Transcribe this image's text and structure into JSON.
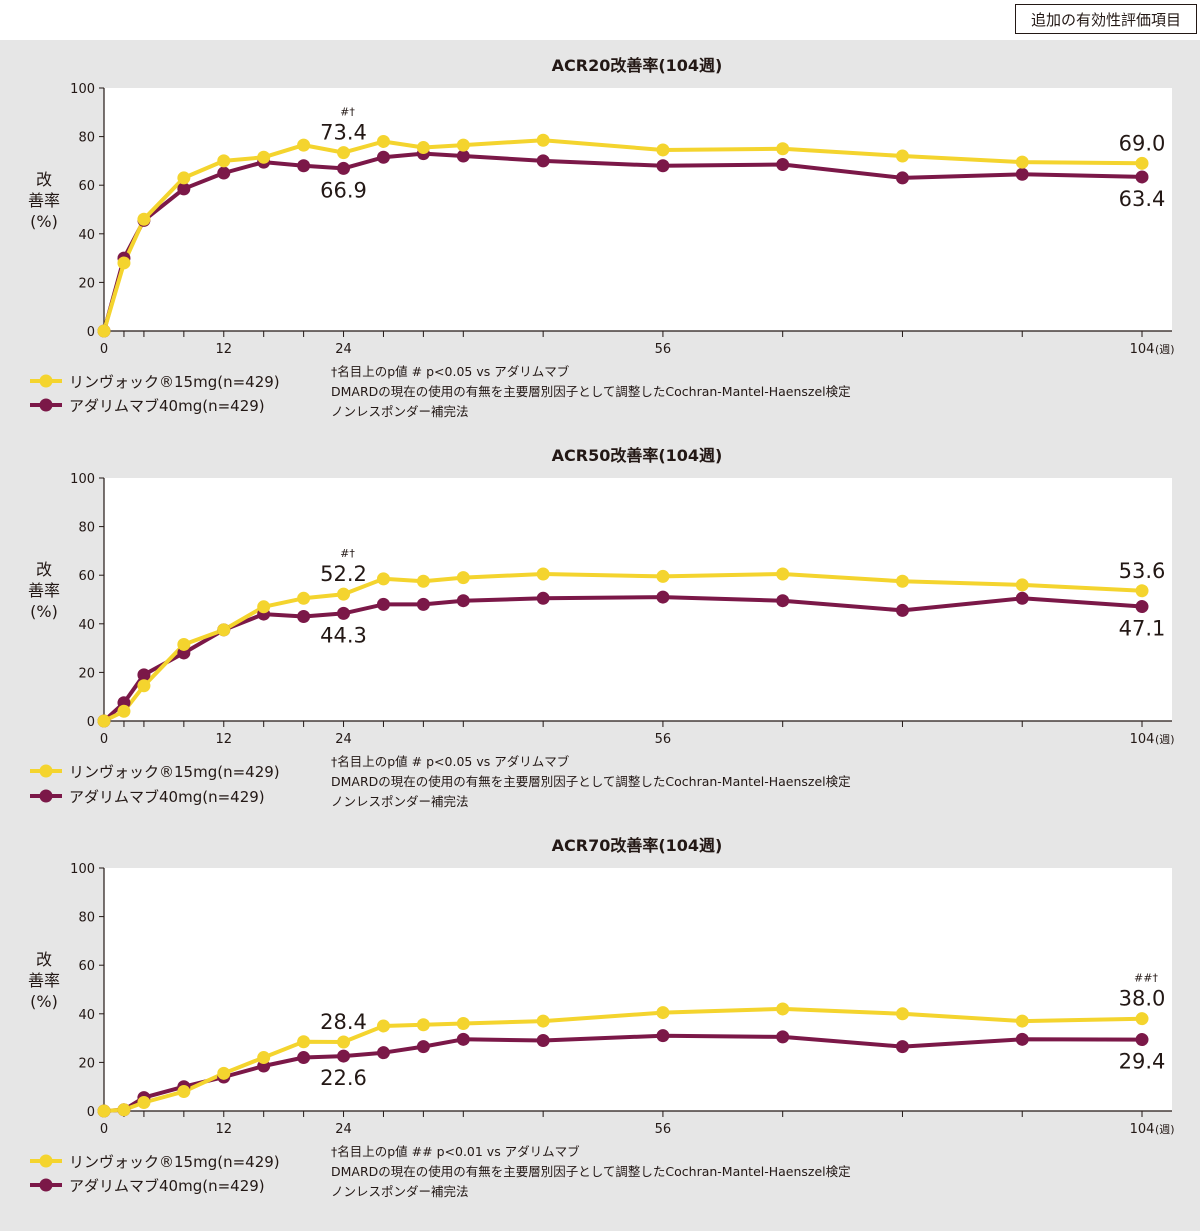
{
  "header": {
    "badge": "追加の有効性評価項目"
  },
  "colors": {
    "upadacitinib": "#f4d42e",
    "adalimumab": "#7b1848",
    "text": "#231815",
    "panel": "#e6e6e6"
  },
  "legend": {
    "upa": "リンヴォック®15mg(n=429)",
    "ada": "アダリムマブ40mg(n=429)"
  },
  "chart_data": [
    {
      "type": "line",
      "title": "ACR20改善率(104週)",
      "ylabel": "改善率(%)",
      "xlim": [
        0,
        104
      ],
      "ylim": [
        0,
        100
      ],
      "xticks": [
        "0",
        "12",
        "24",
        "56",
        "104"
      ],
      "xunit": "(週)",
      "yticks": [
        "0",
        "20",
        "40",
        "60",
        "80",
        "100"
      ],
      "x": [
        0,
        2,
        4,
        8,
        12,
        16,
        20,
        24,
        28,
        32,
        36,
        44,
        56,
        68,
        80,
        92,
        104
      ],
      "series": [
        {
          "name": "リンヴォック®15mg(n=429)",
          "values": [
            0,
            28,
            46,
            63,
            70,
            71.5,
            76.5,
            73.4,
            78,
            75.5,
            76.5,
            78.5,
            74.5,
            75,
            72,
            69.5,
            69.0
          ]
        },
        {
          "name": "アダリムマブ40mg(n=429)",
          "values": [
            0,
            30,
            45.5,
            58.5,
            65,
            69.5,
            68,
            66.9,
            71.5,
            73,
            72,
            70,
            68,
            68.5,
            63,
            64.5,
            63.4
          ]
        }
      ],
      "annotations": [
        {
          "series": 0,
          "x": 24,
          "value": "73.4",
          "mark": "#†"
        },
        {
          "series": 1,
          "x": 24,
          "value": "66.9"
        },
        {
          "series": 0,
          "x": 104,
          "value": "69.0"
        },
        {
          "series": 1,
          "x": 104,
          "value": "63.4"
        }
      ],
      "footnotes": [
        "†名目上のp値 # p<0.05 vs アダリムマブ",
        "DMARDの現在の使用の有無を主要層別因子として調整したCochran-Mantel-Haenszel検定",
        "ノンレスポンダー補完法"
      ]
    },
    {
      "type": "line",
      "title": "ACR50改善率(104週)",
      "ylabel": "改善率(%)",
      "xlim": [
        0,
        104
      ],
      "ylim": [
        0,
        100
      ],
      "xticks": [
        "0",
        "12",
        "24",
        "56",
        "104"
      ],
      "xunit": "(週)",
      "yticks": [
        "0",
        "20",
        "40",
        "60",
        "80",
        "100"
      ],
      "x": [
        0,
        2,
        4,
        8,
        12,
        16,
        20,
        24,
        28,
        32,
        36,
        44,
        56,
        68,
        80,
        92,
        104
      ],
      "series": [
        {
          "name": "リンヴォック®15mg(n=429)",
          "values": [
            0,
            4,
            14.5,
            31.5,
            37.5,
            47,
            50.5,
            52.2,
            58.5,
            57.5,
            59,
            60.5,
            59.5,
            60.5,
            57.5,
            56,
            53.6
          ]
        },
        {
          "name": "アダリムマブ40mg(n=429)",
          "values": [
            0,
            7.5,
            19,
            28,
            37.5,
            44,
            43,
            44.3,
            48,
            48,
            49.5,
            50.5,
            51,
            49.5,
            45.5,
            50.5,
            47.1
          ]
        }
      ],
      "annotations": [
        {
          "series": 0,
          "x": 24,
          "value": "52.2",
          "mark": "#†"
        },
        {
          "series": 1,
          "x": 24,
          "value": "44.3"
        },
        {
          "series": 0,
          "x": 104,
          "value": "53.6"
        },
        {
          "series": 1,
          "x": 104,
          "value": "47.1"
        }
      ],
      "footnotes": [
        "†名目上のp値 # p<0.05 vs アダリムマブ",
        "DMARDの現在の使用の有無を主要層別因子として調整したCochran-Mantel-Haenszel検定",
        "ノンレスポンダー補完法"
      ]
    },
    {
      "type": "line",
      "title": "ACR70改善率(104週)",
      "ylabel": "改善率(%)",
      "xlim": [
        0,
        104
      ],
      "ylim": [
        0,
        100
      ],
      "xticks": [
        "0",
        "12",
        "24",
        "56",
        "104"
      ],
      "xunit": "(週)",
      "yticks": [
        "0",
        "20",
        "40",
        "60",
        "80",
        "100"
      ],
      "x": [
        0,
        2,
        4,
        8,
        12,
        16,
        20,
        24,
        28,
        32,
        36,
        44,
        56,
        68,
        80,
        92,
        104
      ],
      "series": [
        {
          "name": "リンヴォック®15mg(n=429)",
          "values": [
            0,
            0.5,
            3.5,
            8,
            15.5,
            22,
            28.5,
            28.4,
            35,
            35.5,
            36,
            37,
            40.5,
            42,
            40,
            37,
            38.0
          ]
        },
        {
          "name": "アダリムマブ40mg(n=429)",
          "values": [
            0,
            0.5,
            5.5,
            10,
            14,
            18.5,
            22,
            22.6,
            24,
            26.5,
            29.5,
            29,
            31,
            30.5,
            26.5,
            29.5,
            29.4
          ]
        }
      ],
      "annotations": [
        {
          "series": 0,
          "x": 24,
          "value": "28.4"
        },
        {
          "series": 1,
          "x": 24,
          "value": "22.6"
        },
        {
          "series": 0,
          "x": 104,
          "value": "38.0",
          "mark": "##†"
        },
        {
          "series": 1,
          "x": 104,
          "value": "29.4"
        }
      ],
      "footnotes": [
        "†名目上のp値 ## p<0.01 vs アダリムマブ",
        "DMARDの現在の使用の有無を主要層別因子として調整したCochran-Mantel-Haenszel検定",
        "ノンレスポンダー補完法"
      ]
    }
  ]
}
